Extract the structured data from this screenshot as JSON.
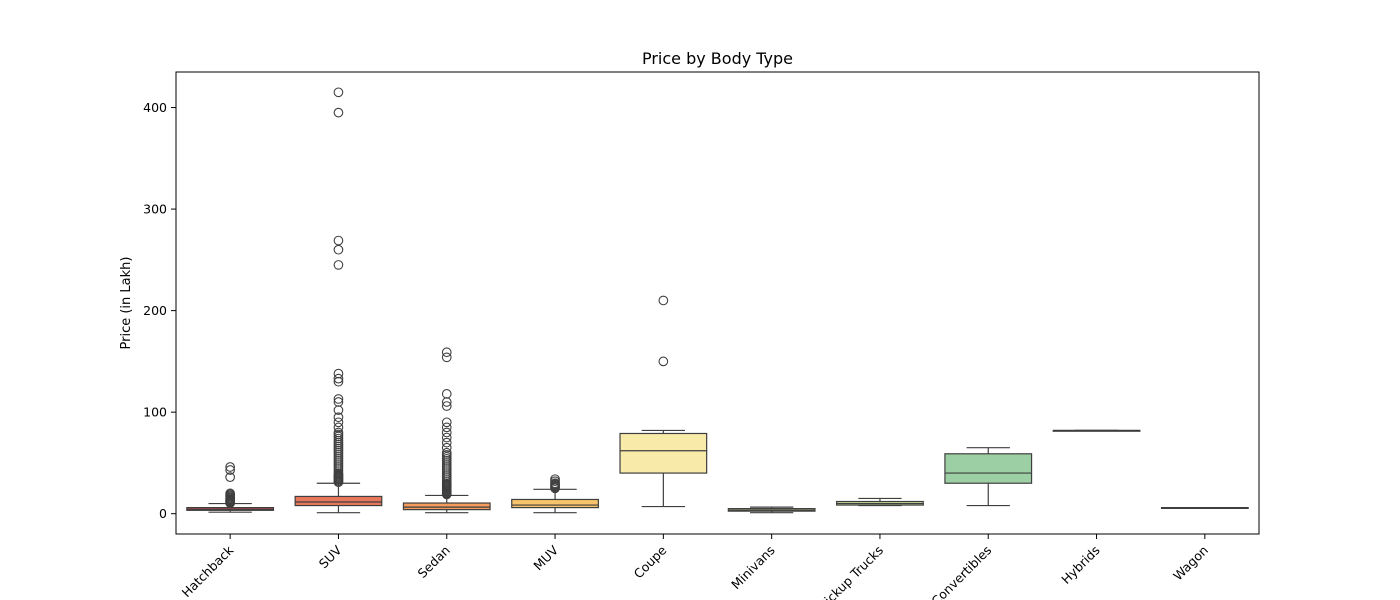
{
  "chart_data": {
    "type": "box",
    "title": "Price by Body Type",
    "xlabel": "",
    "ylabel": "Price (in Lakh)",
    "ylim": [
      -20,
      435
    ],
    "yticks": [
      0,
      100,
      200,
      300,
      400
    ],
    "grid": false,
    "legend": "none",
    "categories": [
      "Hatchback",
      "SUV",
      "Sedan",
      "MUV",
      "Coupe",
      "Minivans",
      "Pickup Trucks",
      "Convertibles",
      "Hybrids",
      "Wagon"
    ],
    "boxes": [
      {
        "category": "Hatchback",
        "color": "#d9534f",
        "whisker_low": 1.5,
        "q1": 3.3,
        "median": 4.4,
        "q3": 6.0,
        "whisker_high": 10.0,
        "outliers": [
          10.5,
          11,
          11.5,
          12,
          12.5,
          13,
          13.5,
          14,
          15,
          16,
          17,
          18,
          19,
          20,
          36,
          43,
          46
        ]
      },
      {
        "category": "SUV",
        "color": "#e8765b",
        "whisker_low": 1.0,
        "q1": 8.0,
        "median": 11.5,
        "q3": 17.0,
        "whisker_high": 30.0,
        "outliers": [
          31,
          32,
          33,
          34,
          35,
          36,
          37,
          38,
          39,
          40,
          42,
          44,
          46,
          48,
          50,
          52,
          54,
          56,
          58,
          60,
          62,
          64,
          66,
          68,
          70,
          72,
          74,
          76,
          78,
          80,
          85,
          90,
          95,
          102,
          110,
          113,
          130,
          133,
          138,
          245,
          260,
          269,
          395,
          415
        ]
      },
      {
        "category": "Sedan",
        "color": "#f39c5b",
        "whisker_low": 1.0,
        "q1": 4.0,
        "median": 6.5,
        "q3": 10.5,
        "whisker_high": 18.0,
        "outliers": [
          19,
          20,
          21,
          22,
          23,
          24,
          25,
          26,
          27,
          28,
          29,
          30,
          32,
          34,
          36,
          38,
          40,
          42,
          44,
          46,
          48,
          50,
          52,
          54,
          56,
          58,
          60,
          65,
          70,
          75,
          80,
          85,
          90,
          106,
          110,
          118,
          154,
          159
        ]
      },
      {
        "category": "MUV",
        "color": "#f7c46c",
        "whisker_low": 1.0,
        "q1": 6.0,
        "median": 8.5,
        "q3": 14.0,
        "whisker_high": 24.0,
        "outliers": [
          25,
          26,
          27,
          28,
          29,
          30,
          32,
          34
        ]
      },
      {
        "category": "Coupe",
        "color": "#f8eaa8",
        "whisker_low": 7.0,
        "q1": 40.0,
        "median": 62.0,
        "q3": 79.0,
        "whisker_high": 82.0,
        "outliers": [
          150,
          210
        ]
      },
      {
        "category": "Minivans",
        "color": "#e3e8a0",
        "whisker_low": 1.0,
        "q1": 2.5,
        "median": 3.5,
        "q3": 5.0,
        "whisker_high": 6.5,
        "outliers": []
      },
      {
        "category": "Pickup Trucks",
        "color": "#c4dd9a",
        "whisker_low": 8.0,
        "q1": 8.5,
        "median": 10.0,
        "q3": 12.0,
        "whisker_high": 15.0,
        "outliers": []
      },
      {
        "category": "Convertibles",
        "color": "#9ccfa3",
        "whisker_low": 8.0,
        "q1": 30.0,
        "median": 40.0,
        "q3": 59.0,
        "whisker_high": 65.0,
        "outliers": []
      },
      {
        "category": "Hybrids",
        "color": "#6dbb9e",
        "whisker_low": 82.0,
        "q1": 82.0,
        "median": 82.0,
        "q3": 82.0,
        "whisker_high": 82.0,
        "outliers": []
      },
      {
        "category": "Wagon",
        "color": "#4f9db2",
        "whisker_low": 6.0,
        "q1": 6.0,
        "median": 6.0,
        "q3": 6.0,
        "whisker_high": 6.0,
        "outliers": []
      }
    ]
  }
}
